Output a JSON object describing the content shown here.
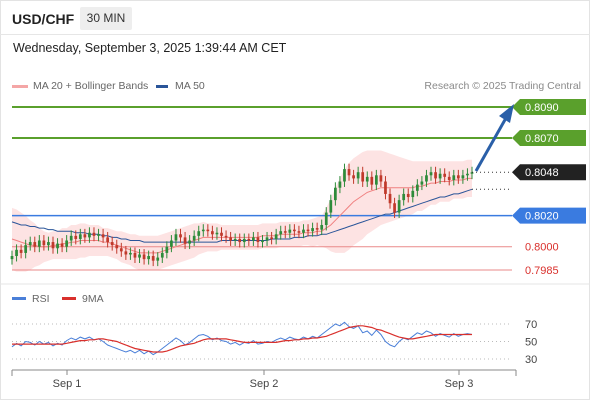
{
  "header": {
    "symbol": "USD/CHF",
    "timeframe": "30 MIN",
    "datetime": "Wednesday, September 3, 2025 1:39:44 AM CET"
  },
  "legend": {
    "ma20_label": "MA 20 + Bollinger Bands",
    "ma50_label": "MA 50",
    "credit": "Research © 2025 Trading Central"
  },
  "colors": {
    "ma20": "#f08080",
    "ma50": "#2a5599",
    "resistance": "#5aa02c",
    "support": "#3a7be0",
    "support_minor": "#ea8a8a",
    "arrow": "#2a5fa8",
    "up_candle": "#2e8b3a",
    "down_candle": "#c0392b",
    "rsi": "#4a7fd8",
    "rsi_ma": "#d9302c"
  },
  "chart_data": [
    {
      "type": "candlestick",
      "title": "USD/CHF",
      "x_ticks": [
        "Sep 1",
        "Sep 2",
        "Sep 3"
      ],
      "current_price": "0.8048",
      "levels": [
        {
          "value": "0.8090",
          "kind": "resistance"
        },
        {
          "value": "0.8070",
          "kind": "resistance"
        },
        {
          "value": "0.8020",
          "kind": "support"
        },
        {
          "value": "0.8000",
          "kind": "minor-support"
        },
        {
          "value": "0.7985",
          "kind": "minor-support"
        }
      ],
      "series": [
        {
          "name": "MA 20 + Bollinger Bands"
        },
        {
          "name": "MA 50"
        }
      ],
      "close": [
        0.7994,
        0.7998,
        0.7996,
        0.8001,
        0.8003,
        0.8,
        0.8004,
        0.8001,
        0.8003,
        0.7999,
        0.8002,
        0.8,
        0.8004,
        0.8007,
        0.8005,
        0.8008,
        0.8006,
        0.8009,
        0.8007,
        0.8008,
        0.8006,
        0.8003,
        0.8001,
        0.7999,
        0.7997,
        0.7995,
        0.7996,
        0.7993,
        0.7995,
        0.7992,
        0.7994,
        0.7991,
        0.7993,
        0.7996,
        0.8,
        0.8004,
        0.8008,
        0.8006,
        0.8002,
        0.8004,
        0.8007,
        0.801,
        0.8011,
        0.801,
        0.8008,
        0.8009,
        0.8007,
        0.8006,
        0.8004,
        0.8005,
        0.8003,
        0.8005,
        0.8004,
        0.8006,
        0.8003,
        0.8004,
        0.8006,
        0.8005,
        0.8008,
        0.801,
        0.8009,
        0.8011,
        0.801,
        0.8009,
        0.8011,
        0.801,
        0.8012,
        0.8011,
        0.8014,
        0.8022,
        0.803,
        0.8038,
        0.8042,
        0.805,
        0.8046,
        0.8044,
        0.8048,
        0.8042,
        0.8045,
        0.804,
        0.8046,
        0.8042,
        0.8034,
        0.8028,
        0.8022,
        0.803,
        0.8034,
        0.8032,
        0.8036,
        0.804,
        0.8042,
        0.8046,
        0.8048,
        0.8044,
        0.8047,
        0.8045,
        0.8043,
        0.8046,
        0.8044,
        0.8046,
        0.8047,
        0.8048
      ],
      "ma20": [
        0.8005,
        0.8004,
        0.8003,
        0.8002,
        0.8001,
        0.8001,
        0.8,
        0.8,
        0.8,
        0.8001,
        0.8001,
        0.8002,
        0.8002,
        0.8003,
        0.8003,
        0.8004,
        0.8004,
        0.8004,
        0.8004,
        0.8004,
        0.8003,
        0.8003,
        0.8002,
        0.8001,
        0.8,
        0.7999,
        0.7998,
        0.7997,
        0.7996,
        0.7996,
        0.7996,
        0.7996,
        0.7996,
        0.7997,
        0.7998,
        0.7999,
        0.8,
        0.8001,
        0.8002,
        0.8003,
        0.8004,
        0.8005,
        0.8006,
        0.8006,
        0.8006,
        0.8006,
        0.8006,
        0.8006,
        0.8006,
        0.8006,
        0.8006,
        0.8006,
        0.8006,
        0.8006,
        0.8006,
        0.8007,
        0.8007,
        0.8007,
        0.8007,
        0.8008,
        0.8008,
        0.8008,
        0.8008,
        0.8008,
        0.8009,
        0.8009,
        0.8009,
        0.801,
        0.801,
        0.8012,
        0.8014,
        0.8017,
        0.802,
        0.8023,
        0.8026,
        0.8029,
        0.8031,
        0.8033,
        0.8035,
        0.8036,
        0.8037,
        0.8038,
        0.8038,
        0.8038,
        0.8038,
        0.8038,
        0.8038,
        0.8038,
        0.8038,
        0.8039,
        0.8039,
        0.804,
        0.8041,
        0.8041,
        0.8042,
        0.8042,
        0.8042,
        0.8043,
        0.8043,
        0.8043,
        0.8044,
        0.8044
      ],
      "ma50": [
        0.8016,
        0.8015,
        0.8014,
        0.8014,
        0.8013,
        0.8013,
        0.8012,
        0.8012,
        0.8011,
        0.8011,
        0.801,
        0.801,
        0.801,
        0.801,
        0.8009,
        0.8009,
        0.8009,
        0.8008,
        0.8008,
        0.8008,
        0.8007,
        0.8007,
        0.8006,
        0.8006,
        0.8005,
        0.8005,
        0.8004,
        0.8004,
        0.8004,
        0.8003,
        0.8003,
        0.8003,
        0.8003,
        0.8003,
        0.8003,
        0.8003,
        0.8003,
        0.8003,
        0.8003,
        0.8003,
        0.8003,
        0.8003,
        0.8003,
        0.8003,
        0.8003,
        0.8003,
        0.8004,
        0.8004,
        0.8004,
        0.8004,
        0.8004,
        0.8004,
        0.8004,
        0.8004,
        0.8004,
        0.8004,
        0.8004,
        0.8005,
        0.8005,
        0.8005,
        0.8005,
        0.8005,
        0.8006,
        0.8006,
        0.8006,
        0.8007,
        0.8007,
        0.8007,
        0.8008,
        0.8008,
        0.8009,
        0.801,
        0.8011,
        0.8012,
        0.8013,
        0.8014,
        0.8015,
        0.8016,
        0.8017,
        0.8018,
        0.8019,
        0.802,
        0.8021,
        0.8021,
        0.8022,
        0.8023,
        0.8024,
        0.8025,
        0.8026,
        0.8027,
        0.8028,
        0.8029,
        0.803,
        0.8031,
        0.8032,
        0.8032,
        0.8033,
        0.8034,
        0.8034,
        0.8035,
        0.8036,
        0.8037
      ],
      "bb_width": [
        0.002,
        0.002,
        0.0019,
        0.0018,
        0.0016,
        0.0014,
        0.0012,
        0.001,
        0.0009,
        0.0009,
        0.0009,
        0.001,
        0.001,
        0.0011,
        0.0011,
        0.0011,
        0.0011,
        0.001,
        0.001,
        0.001,
        0.0009,
        0.0009,
        0.0009,
        0.0009,
        0.001,
        0.001,
        0.001,
        0.0011,
        0.0011,
        0.0011,
        0.0011,
        0.0011,
        0.0011,
        0.0011,
        0.0011,
        0.0011,
        0.0011,
        0.0011,
        0.0011,
        0.0011,
        0.0011,
        0.001,
        0.001,
        0.0009,
        0.0009,
        0.0009,
        0.0008,
        0.0008,
        0.0008,
        0.0008,
        0.0008,
        0.0008,
        0.0008,
        0.0008,
        0.0008,
        0.0008,
        0.0008,
        0.0008,
        0.0008,
        0.0008,
        0.0008,
        0.0008,
        0.0008,
        0.0008,
        0.0008,
        0.0008,
        0.0009,
        0.0009,
        0.001,
        0.0013,
        0.0017,
        0.0021,
        0.0024,
        0.0027,
        0.0028,
        0.0028,
        0.0028,
        0.0028,
        0.0027,
        0.0026,
        0.0025,
        0.0024,
        0.0023,
        0.0022,
        0.0021,
        0.002,
        0.0019,
        0.0018,
        0.0017,
        0.0016,
        0.0016,
        0.0015,
        0.0014,
        0.0014,
        0.0013,
        0.0013,
        0.0013,
        0.0012,
        0.0012,
        0.0012,
        0.0012,
        0.0012
      ]
    },
    {
      "type": "line",
      "title": "RSI",
      "series": [
        {
          "name": "RSI"
        },
        {
          "name": "9MA"
        }
      ],
      "y_ticks": [
        "70",
        "50",
        "30"
      ],
      "ylim": [
        10,
        90
      ],
      "rsi": [
        44,
        48,
        45,
        50,
        49,
        46,
        50,
        47,
        49,
        45,
        48,
        46,
        51,
        54,
        52,
        55,
        53,
        55,
        52,
        53,
        50,
        46,
        44,
        42,
        40,
        38,
        40,
        37,
        40,
        36,
        39,
        35,
        38,
        42,
        46,
        50,
        54,
        51,
        46,
        49,
        53,
        57,
        58,
        56,
        52,
        54,
        51,
        50,
        47,
        49,
        46,
        49,
        48,
        51,
        47,
        48,
        50,
        49,
        52,
        54,
        52,
        55,
        53,
        52,
        55,
        53,
        56,
        54,
        58,
        62,
        66,
        70,
        68,
        72,
        67,
        65,
        68,
        60,
        62,
        57,
        63,
        58,
        50,
        46,
        44,
        50,
        54,
        52,
        56,
        60,
        58,
        62,
        60,
        56,
        59,
        57,
        55,
        59,
        56,
        58,
        59,
        58
      ],
      "rsi_ma": [
        47,
        47,
        47,
        47,
        47,
        47,
        47,
        47,
        47,
        47,
        47,
        47,
        48,
        49,
        50,
        51,
        51,
        52,
        52,
        53,
        53,
        52,
        51,
        50,
        48,
        46,
        44,
        42,
        41,
        40,
        39,
        38,
        38,
        38,
        39,
        41,
        43,
        45,
        46,
        47,
        48,
        50,
        52,
        53,
        53,
        53,
        53,
        53,
        52,
        51,
        50,
        49,
        49,
        49,
        49,
        49,
        49,
        49,
        49,
        50,
        51,
        51,
        52,
        52,
        53,
        53,
        54,
        54,
        55,
        56,
        58,
        60,
        62,
        64,
        66,
        67,
        68,
        68,
        67,
        66,
        64,
        63,
        61,
        59,
        57,
        55,
        54,
        53,
        53,
        54,
        55,
        56,
        57,
        58,
        58,
        58,
        58,
        58,
        58,
        58,
        58,
        58
      ]
    }
  ]
}
